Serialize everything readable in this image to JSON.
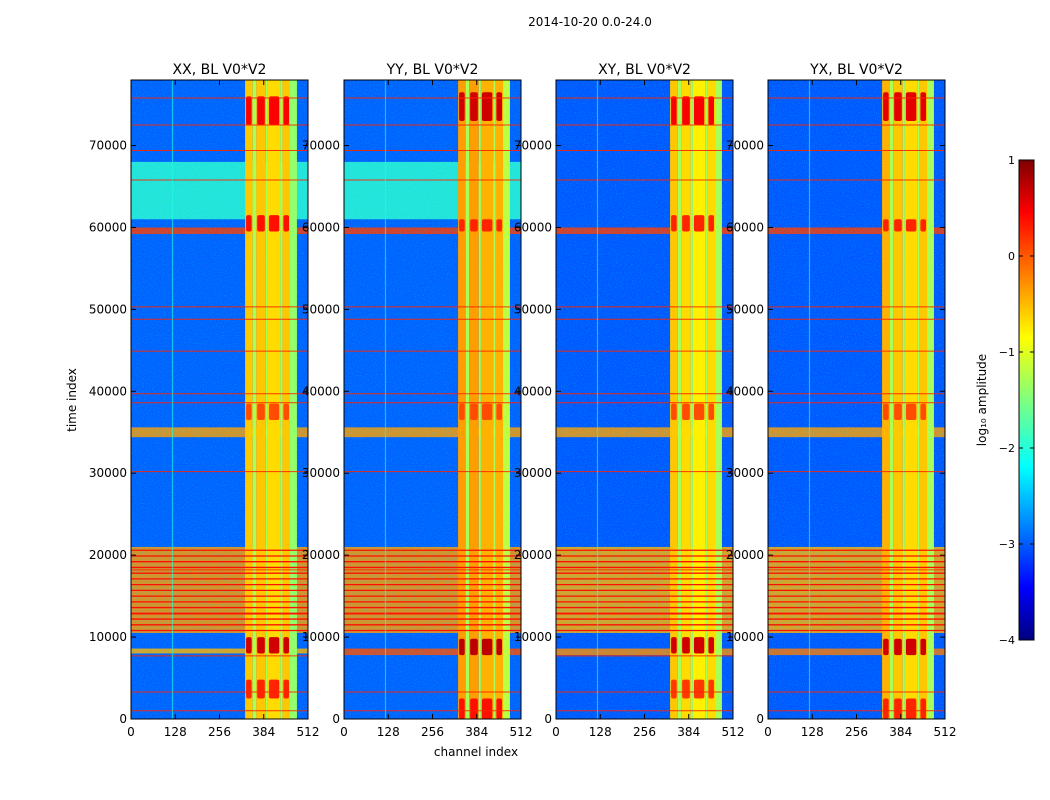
{
  "figure": {
    "suptitle": "2014-10-20 0.0-24.0",
    "xlabel": "channel index",
    "ylabel": "time index"
  },
  "colorbar": {
    "label": "log₁₀ amplitude",
    "min": -4,
    "max": 1,
    "ticks": [
      -4,
      -3,
      -2,
      -1,
      0,
      1
    ],
    "tick_labels": [
      "−4",
      "−3",
      "−2",
      "−1",
      "0",
      "1"
    ],
    "colormap": "jet"
  },
  "colors": {
    "jet_dark_blue": "#00007f",
    "jet_blue": "#0000ff",
    "jet_cyan": "#00ffff",
    "jet_yellow": "#ffff00",
    "jet_red": "#ff0000",
    "jet_dark_red": "#7f0000"
  },
  "chart_data": [
    {
      "type": "heatmap",
      "title": "XX, BL V0*V2",
      "xlabel": "",
      "ylabel": "time index",
      "xlim": [
        0,
        512
      ],
      "ylim": [
        0,
        78000
      ],
      "xticks": [
        0,
        128,
        256,
        384,
        512
      ],
      "yticks": [
        0,
        10000,
        20000,
        30000,
        40000,
        50000,
        60000,
        70000
      ],
      "xtick_labels": [
        "0",
        "128",
        "256",
        "384",
        "512"
      ],
      "ytick_labels": [
        "0",
        "10000",
        "20000",
        "30000",
        "40000",
        "50000",
        "60000",
        "70000"
      ],
      "background_level": -2.9,
      "channel_bands": [
        {
          "start": 330,
          "end": 352,
          "level": -0.6
        },
        {
          "start": 352,
          "end": 362,
          "level": -1.3
        },
        {
          "start": 362,
          "end": 390,
          "level": -0.6
        },
        {
          "start": 390,
          "end": 396,
          "level": -1.3
        },
        {
          "start": 396,
          "end": 432,
          "level": -0.7
        },
        {
          "start": 432,
          "end": 438,
          "level": -1.3
        },
        {
          "start": 438,
          "end": 460,
          "level": -0.6
        },
        {
          "start": 460,
          "end": 480,
          "level": -1.4
        }
      ],
      "time_bands": [
        {
          "start": 61000,
          "end": 68000,
          "level": -1.9
        },
        {
          "start": 59200,
          "end": 60000,
          "level": 0.1
        },
        {
          "start": 34400,
          "end": 35600,
          "level": -0.4
        },
        {
          "start": 10500,
          "end": 21000,
          "level": -0.4
        },
        {
          "start": 8000,
          "end": 8600,
          "level": -0.5
        }
      ],
      "hot_patches": [
        {
          "t0": 72500,
          "t1": 76000,
          "level": 0.4
        },
        {
          "t0": 59500,
          "t1": 61500,
          "level": 0.3
        },
        {
          "t0": 36500,
          "t1": 38500,
          "level": 0.0
        },
        {
          "t0": 8000,
          "t1": 10000,
          "level": 0.6
        },
        {
          "t0": 2500,
          "t1": 4800,
          "level": 0.2
        }
      ],
      "rfi_lines": [
        1000,
        3300,
        7700,
        12800,
        18200,
        30200,
        38600,
        39700,
        44900,
        48800,
        50300,
        65800,
        69400,
        72500,
        75800
      ]
    },
    {
      "type": "heatmap",
      "title": "YY, BL V0*V2",
      "xlabel": "channel index",
      "ylabel": "",
      "xlim": [
        0,
        512
      ],
      "ylim": [
        0,
        78000
      ],
      "xticks": [
        0,
        128,
        256,
        384,
        512
      ],
      "yticks": [
        0,
        10000,
        20000,
        30000,
        40000,
        50000,
        60000,
        70000
      ],
      "xtick_labels": [
        "0",
        "128",
        "256",
        "384",
        "512"
      ],
      "ytick_labels": [
        "0",
        "10000",
        "20000",
        "30000",
        "40000",
        "50000",
        "60000",
        "70000"
      ],
      "background_level": -2.9,
      "channel_bands": [
        {
          "start": 330,
          "end": 352,
          "level": -0.4
        },
        {
          "start": 352,
          "end": 362,
          "level": -1.3
        },
        {
          "start": 362,
          "end": 390,
          "level": -0.4
        },
        {
          "start": 390,
          "end": 396,
          "level": -1.3
        },
        {
          "start": 396,
          "end": 432,
          "level": -0.5
        },
        {
          "start": 432,
          "end": 438,
          "level": -1.3
        },
        {
          "start": 438,
          "end": 460,
          "level": -0.5
        },
        {
          "start": 460,
          "end": 480,
          "level": -1.2
        }
      ],
      "time_bands": [
        {
          "start": 61000,
          "end": 68000,
          "level": -1.9
        },
        {
          "start": 59200,
          "end": 60000,
          "level": 0.1
        },
        {
          "start": 34400,
          "end": 35600,
          "level": -0.4
        },
        {
          "start": 10500,
          "end": 21000,
          "level": -0.4
        },
        {
          "start": 7800,
          "end": 8600,
          "level": 0.0
        }
      ],
      "hot_patches": [
        {
          "t0": 73000,
          "t1": 76500,
          "level": 0.6
        },
        {
          "t0": 59500,
          "t1": 61000,
          "level": 0.2
        },
        {
          "t0": 36500,
          "t1": 38500,
          "level": 0.0
        },
        {
          "t0": 7800,
          "t1": 9800,
          "level": 0.7
        },
        {
          "t0": 0,
          "t1": 2500,
          "level": 0.3
        }
      ],
      "rfi_lines": [
        1000,
        3300,
        12800,
        18200,
        30200,
        38600,
        39700,
        44900,
        48800,
        50300,
        65800,
        69400,
        72500,
        75800
      ]
    },
    {
      "type": "heatmap",
      "title": "XY, BL V0*V2",
      "xlabel": "",
      "ylabel": "",
      "xlim": [
        0,
        512
      ],
      "ylim": [
        0,
        78000
      ],
      "xticks": [
        0,
        128,
        256,
        384,
        512
      ],
      "yticks": [
        0,
        10000,
        20000,
        30000,
        40000,
        50000,
        60000,
        70000
      ],
      "xtick_labels": [
        "0",
        "128",
        "256",
        "384",
        "512"
      ],
      "ytick_labels": [
        "0",
        "10000",
        "20000",
        "30000",
        "40000",
        "50000",
        "60000",
        "70000"
      ],
      "background_level": -2.95,
      "channel_bands": [
        {
          "start": 330,
          "end": 352,
          "level": -0.6
        },
        {
          "start": 352,
          "end": 362,
          "level": -1.3
        },
        {
          "start": 362,
          "end": 390,
          "level": -0.7
        },
        {
          "start": 390,
          "end": 396,
          "level": -1.3
        },
        {
          "start": 396,
          "end": 432,
          "level": -0.8
        },
        {
          "start": 432,
          "end": 438,
          "level": -1.3
        },
        {
          "start": 438,
          "end": 460,
          "level": -0.7
        },
        {
          "start": 460,
          "end": 480,
          "level": -1.3
        }
      ],
      "time_bands": [
        {
          "start": 59200,
          "end": 60000,
          "level": 0.1
        },
        {
          "start": 34400,
          "end": 35600,
          "level": -0.4
        },
        {
          "start": 10500,
          "end": 21000,
          "level": -0.5
        },
        {
          "start": 7800,
          "end": 8600,
          "level": -0.3
        }
      ],
      "hot_patches": [
        {
          "t0": 72500,
          "t1": 76000,
          "level": 0.4
        },
        {
          "t0": 59500,
          "t1": 61500,
          "level": 0.2
        },
        {
          "t0": 36500,
          "t1": 38500,
          "level": 0.0
        },
        {
          "t0": 8000,
          "t1": 10000,
          "level": 0.6
        },
        {
          "t0": 2500,
          "t1": 4800,
          "level": 0.1
        }
      ],
      "rfi_lines": [
        1000,
        3300,
        7700,
        12800,
        18200,
        30200,
        38600,
        39700,
        44900,
        48800,
        50300,
        65800,
        69400,
        72500,
        75800
      ]
    },
    {
      "type": "heatmap",
      "title": "YX, BL V0*V2",
      "xlabel": "",
      "ylabel": "",
      "xlim": [
        0,
        512
      ],
      "ylim": [
        0,
        78000
      ],
      "xticks": [
        0,
        128,
        256,
        384,
        512
      ],
      "yticks": [
        0,
        10000,
        20000,
        30000,
        40000,
        50000,
        60000,
        70000
      ],
      "xtick_labels": [
        "0",
        "128",
        "256",
        "384",
        "512"
      ],
      "ytick_labels": [
        "0",
        "10000",
        "20000",
        "30000",
        "40000",
        "50000",
        "60000",
        "70000"
      ],
      "background_level": -2.95,
      "channel_bands": [
        {
          "start": 330,
          "end": 352,
          "level": -0.5
        },
        {
          "start": 352,
          "end": 362,
          "level": -1.3
        },
        {
          "start": 362,
          "end": 390,
          "level": -0.6
        },
        {
          "start": 390,
          "end": 396,
          "level": -1.3
        },
        {
          "start": 396,
          "end": 432,
          "level": -0.7
        },
        {
          "start": 432,
          "end": 438,
          "level": -1.3
        },
        {
          "start": 438,
          "end": 460,
          "level": -0.6
        },
        {
          "start": 460,
          "end": 480,
          "level": -1.3
        }
      ],
      "time_bands": [
        {
          "start": 59200,
          "end": 60000,
          "level": 0.1
        },
        {
          "start": 34400,
          "end": 35600,
          "level": -0.4
        },
        {
          "start": 10500,
          "end": 21000,
          "level": -0.5
        },
        {
          "start": 7800,
          "end": 8600,
          "level": -0.2
        }
      ],
      "hot_patches": [
        {
          "t0": 73000,
          "t1": 76500,
          "level": 0.5
        },
        {
          "t0": 59500,
          "t1": 61000,
          "level": 0.2
        },
        {
          "t0": 36500,
          "t1": 38500,
          "level": 0.0
        },
        {
          "t0": 7800,
          "t1": 9800,
          "level": 0.6
        },
        {
          "t0": 0,
          "t1": 2500,
          "level": 0.2
        }
      ],
      "rfi_lines": [
        1000,
        3300,
        12800,
        18200,
        30200,
        38600,
        39700,
        44900,
        48800,
        50300,
        65800,
        69400,
        72500,
        75800
      ]
    }
  ]
}
